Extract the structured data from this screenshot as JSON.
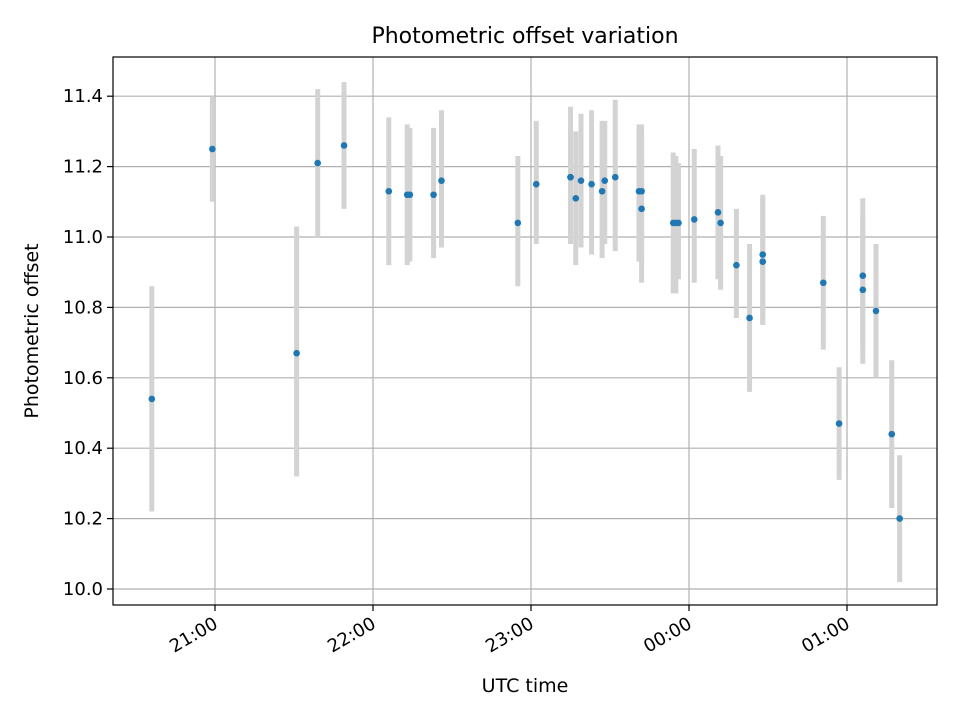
{
  "chart_data": {
    "type": "scatter",
    "title": "Photometric offset variation",
    "xlabel": "UTC time",
    "ylabel": "Photometric offset",
    "x_ticks": [
      "21:00",
      "22:00",
      "23:00",
      "00:00",
      "01:00"
    ],
    "y_ticks": [
      "10.0",
      "10.2",
      "10.4",
      "10.6",
      "10.8",
      "11.0",
      "11.2",
      "11.4"
    ],
    "grid": true,
    "colors": {
      "point": "#1f77b4",
      "errorbar": "#d3d3d3",
      "grid": "#b0b0b0"
    },
    "points": [
      {
        "t": "20:36",
        "y": 10.54,
        "lo": 10.22,
        "hi": 10.86
      },
      {
        "t": "20:59",
        "y": 11.25,
        "lo": 11.1,
        "hi": 11.4
      },
      {
        "t": "21:31",
        "y": 10.67,
        "lo": 10.32,
        "hi": 11.03
      },
      {
        "t": "21:39",
        "y": 11.21,
        "lo": 11.0,
        "hi": 11.42
      },
      {
        "t": "21:49",
        "y": 11.26,
        "lo": 11.08,
        "hi": 11.44
      },
      {
        "t": "22:06",
        "y": 11.13,
        "lo": 10.92,
        "hi": 11.34
      },
      {
        "t": "22:13",
        "y": 11.12,
        "lo": 10.92,
        "hi": 11.32
      },
      {
        "t": "22:14",
        "y": 11.12,
        "lo": 10.93,
        "hi": 11.31
      },
      {
        "t": "22:23",
        "y": 11.12,
        "lo": 10.94,
        "hi": 11.31
      },
      {
        "t": "22:26",
        "y": 11.16,
        "lo": 10.97,
        "hi": 11.36
      },
      {
        "t": "22:55",
        "y": 11.04,
        "lo": 10.86,
        "hi": 11.23
      },
      {
        "t": "23:02",
        "y": 11.15,
        "lo": 10.98,
        "hi": 11.33
      },
      {
        "t": "23:15",
        "y": 11.17,
        "lo": 10.98,
        "hi": 11.36
      },
      {
        "t": "23:15",
        "y": 11.17,
        "lo": 10.98,
        "hi": 11.37
      },
      {
        "t": "23:17",
        "y": 11.11,
        "lo": 10.92,
        "hi": 11.3
      },
      {
        "t": "23:19",
        "y": 11.16,
        "lo": 10.97,
        "hi": 11.35
      },
      {
        "t": "23:23",
        "y": 11.15,
        "lo": 10.95,
        "hi": 11.36
      },
      {
        "t": "23:27",
        "y": 11.13,
        "lo": 10.94,
        "hi": 11.33
      },
      {
        "t": "23:28",
        "y": 11.16,
        "lo": 10.98,
        "hi": 11.33
      },
      {
        "t": "23:32",
        "y": 11.17,
        "lo": 10.96,
        "hi": 11.39
      },
      {
        "t": "23:41",
        "y": 11.13,
        "lo": 10.93,
        "hi": 11.32
      },
      {
        "t": "23:42",
        "y": 11.13,
        "lo": 10.94,
        "hi": 11.32
      },
      {
        "t": "23:42",
        "y": 11.08,
        "lo": 10.87,
        "hi": 11.28
      },
      {
        "t": "23:54",
        "y": 11.04,
        "lo": 10.84,
        "hi": 11.24
      },
      {
        "t": "23:55",
        "y": 11.04,
        "lo": 10.84,
        "hi": 11.23
      },
      {
        "t": "23:56",
        "y": 11.04,
        "lo": 10.88,
        "hi": 11.21
      },
      {
        "t": "00:02",
        "y": 11.05,
        "lo": 10.87,
        "hi": 11.25
      },
      {
        "t": "00:11",
        "y": 11.07,
        "lo": 10.88,
        "hi": 11.26
      },
      {
        "t": "00:12",
        "y": 11.04,
        "lo": 10.85,
        "hi": 11.23
      },
      {
        "t": "00:18",
        "y": 10.92,
        "lo": 10.77,
        "hi": 11.08
      },
      {
        "t": "00:23",
        "y": 10.77,
        "lo": 10.56,
        "hi": 10.98
      },
      {
        "t": "00:28",
        "y": 10.95,
        "lo": 10.75,
        "hi": 11.12
      },
      {
        "t": "00:28",
        "y": 10.93,
        "lo": 10.76,
        "hi": 11.11
      },
      {
        "t": "00:51",
        "y": 10.87,
        "lo": 10.68,
        "hi": 11.06
      },
      {
        "t": "00:57",
        "y": 10.47,
        "lo": 10.31,
        "hi": 10.63
      },
      {
        "t": "01:06",
        "y": 10.89,
        "lo": 10.69,
        "hi": 11.11
      },
      {
        "t": "01:06",
        "y": 10.85,
        "lo": 10.64,
        "hi": 11.06
      },
      {
        "t": "01:11",
        "y": 10.79,
        "lo": 10.6,
        "hi": 10.98
      },
      {
        "t": "01:17",
        "y": 10.44,
        "lo": 10.23,
        "hi": 10.65
      },
      {
        "t": "01:20",
        "y": 10.2,
        "lo": 10.02,
        "hi": 10.38
      }
    ]
  }
}
